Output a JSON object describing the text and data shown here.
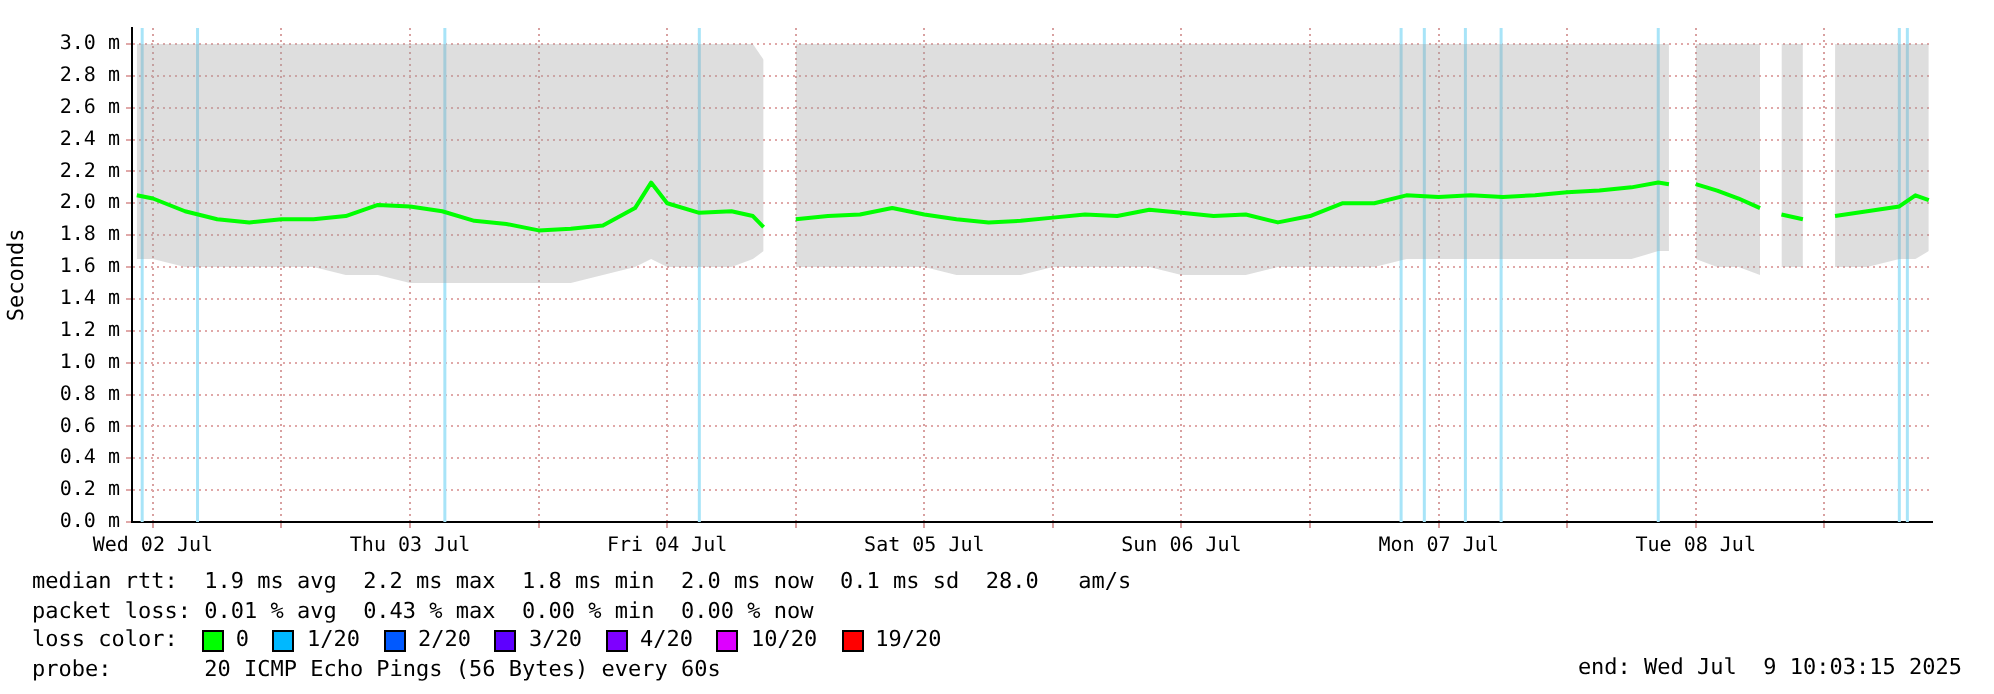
{
  "chart_data": {
    "type": "line",
    "ylabel": "Seconds",
    "legend_title": "loss color:",
    "legend": "bottom",
    "grid": true,
    "marker": "none",
    "line_style": "solid",
    "x": [
      "2025-07-02T10:30",
      "2025-07-02T12:00",
      "2025-07-02T15:00",
      "2025-07-02T18:00",
      "2025-07-02T21:00",
      "2025-07-03T00:00",
      "2025-07-03T03:00",
      "2025-07-03T06:00",
      "2025-07-03T09:00",
      "2025-07-03T12:00",
      "2025-07-03T15:00",
      "2025-07-03T18:00",
      "2025-07-03T21:00",
      "2025-07-04T00:00",
      "2025-07-04T03:00",
      "2025-07-04T06:00",
      "2025-07-04T09:00",
      "2025-07-04T10:30",
      "2025-07-04T12:00",
      "2025-07-04T15:00",
      "2025-07-04T18:00",
      "2025-07-04T20:00",
      "2025-07-04T21:00",
      "2025-07-04T22:00",
      "2025-07-05T00:00",
      "2025-07-05T03:00",
      "2025-07-05T06:00",
      "2025-07-05T09:00",
      "2025-07-05T12:00",
      "2025-07-05T15:00",
      "2025-07-05T18:00",
      "2025-07-05T21:00",
      "2025-07-06T00:00",
      "2025-07-06T03:00",
      "2025-07-06T06:00",
      "2025-07-06T09:00",
      "2025-07-06T12:00",
      "2025-07-06T15:00",
      "2025-07-06T18:00",
      "2025-07-06T21:00",
      "2025-07-07T00:00",
      "2025-07-07T03:00",
      "2025-07-07T06:00",
      "2025-07-07T09:00",
      "2025-07-07T12:00",
      "2025-07-07T15:00",
      "2025-07-07T18:00",
      "2025-07-07T21:00",
      "2025-07-08T00:00",
      "2025-07-08T03:00",
      "2025-07-08T06:00",
      "2025-07-08T08:30",
      "2025-07-08T09:30",
      "2025-07-08T10:30",
      "2025-07-08T12:00",
      "2025-07-08T14:00",
      "2025-07-08T16:00",
      "2025-07-08T18:00",
      "2025-07-08T19:00",
      "2025-07-08T20:00",
      "2025-07-08T22:00",
      "2025-07-08T23:00",
      "2025-07-09T01:00",
      "2025-07-09T04:00",
      "2025-07-09T07:00",
      "2025-07-09T08:30",
      "2025-07-09T09:45"
    ],
    "series": [
      {
        "name": "0",
        "color": "#00ff00",
        "values": [
          2.05,
          2.03,
          1.95,
          1.9,
          1.88,
          1.9,
          1.9,
          1.92,
          1.99,
          1.98,
          1.95,
          1.89,
          1.87,
          1.83,
          1.84,
          1.86,
          1.97,
          2.13,
          2.0,
          1.94,
          1.95,
          1.92,
          1.85,
          null,
          1.9,
          1.92,
          1.93,
          1.97,
          1.93,
          1.9,
          1.88,
          1.89,
          1.91,
          1.93,
          1.92,
          1.96,
          1.94,
          1.92,
          1.93,
          1.88,
          1.92,
          2.0,
          2.0,
          2.05,
          2.04,
          2.05,
          2.04,
          2.05,
          2.07,
          2.08,
          2.1,
          2.13,
          2.12,
          null,
          2.12,
          2.08,
          2.03,
          1.97,
          null,
          1.93,
          1.9,
          null,
          1.92,
          1.95,
          1.98,
          2.05,
          2.02
        ],
        "lower": [
          1.65,
          1.65,
          1.6,
          1.6,
          1.6,
          1.6,
          1.6,
          1.55,
          1.55,
          1.5,
          1.5,
          1.5,
          1.5,
          1.5,
          1.5,
          1.55,
          1.6,
          1.65,
          1.6,
          1.6,
          1.6,
          1.65,
          1.7,
          null,
          1.6,
          1.6,
          1.6,
          1.6,
          1.6,
          1.55,
          1.55,
          1.55,
          1.6,
          1.6,
          1.6,
          1.6,
          1.55,
          1.55,
          1.55,
          1.6,
          1.6,
          1.6,
          1.6,
          1.65,
          1.65,
          1.65,
          1.65,
          1.65,
          1.65,
          1.65,
          1.65,
          1.7,
          1.7,
          null,
          1.65,
          1.6,
          1.6,
          1.55,
          null,
          1.6,
          1.6,
          null,
          1.6,
          1.6,
          1.65,
          1.65,
          1.7
        ],
        "upper": [
          3.0,
          3.0,
          3.0,
          3.0,
          3.0,
          3.0,
          3.0,
          3.0,
          3.0,
          3.0,
          3.0,
          3.0,
          3.0,
          3.0,
          3.0,
          3.0,
          3.0,
          3.0,
          3.0,
          3.0,
          3.0,
          3.0,
          2.9,
          null,
          3.0,
          3.0,
          3.0,
          3.0,
          3.0,
          3.0,
          3.0,
          3.0,
          3.0,
          3.0,
          3.0,
          3.0,
          3.0,
          3.0,
          3.0,
          3.0,
          3.0,
          3.0,
          3.0,
          3.0,
          3.0,
          3.0,
          3.0,
          3.0,
          3.0,
          3.0,
          3.0,
          3.0,
          3.0,
          null,
          3.0,
          3.0,
          3.0,
          3.0,
          null,
          3.0,
          3.0,
          null,
          3.0,
          3.0,
          3.0,
          3.0,
          3.0
        ]
      },
      {
        "name": "1/20",
        "color": "#00b8ff",
        "values": [
          null,
          null,
          null,
          null,
          null,
          null,
          null,
          null,
          null,
          null,
          null,
          null,
          null,
          null,
          null,
          null,
          null,
          null,
          null,
          null,
          null,
          null,
          null,
          null,
          null,
          null,
          null,
          null,
          null,
          null,
          null,
          null,
          null,
          null,
          null,
          null,
          null,
          null,
          null,
          null,
          null,
          null,
          null,
          null,
          null,
          null,
          null,
          null,
          null,
          null,
          null,
          null,
          null,
          null,
          null,
          null,
          null,
          null,
          null,
          null,
          null,
          null,
          null,
          null,
          null,
          null,
          null
        ]
      },
      {
        "name": "2/20",
        "color": "#0059ff",
        "values": [
          null,
          null,
          null,
          null,
          null,
          null,
          null,
          null,
          null,
          null,
          null,
          null,
          null,
          null,
          null,
          null,
          null,
          null,
          null,
          null,
          null,
          null,
          null,
          null,
          null,
          null,
          null,
          null,
          null,
          null,
          null,
          null,
          null,
          null,
          null,
          null,
          null,
          null,
          null,
          null,
          null,
          null,
          null,
          null,
          null,
          null,
          null,
          null,
          null,
          null,
          null,
          null,
          null,
          null,
          null,
          null,
          null,
          null,
          null,
          null,
          null,
          null,
          null,
          null,
          null,
          null,
          null
        ]
      },
      {
        "name": "3/20",
        "color": "#5e00ff",
        "values": [
          null,
          null,
          null,
          null,
          null,
          null,
          null,
          null,
          null,
          null,
          null,
          null,
          null,
          null,
          null,
          null,
          null,
          null,
          null,
          null,
          null,
          null,
          null,
          null,
          null,
          null,
          null,
          null,
          null,
          null,
          null,
          null,
          null,
          null,
          null,
          null,
          null,
          null,
          null,
          null,
          null,
          null,
          null,
          null,
          null,
          null,
          null,
          null,
          null,
          null,
          null,
          null,
          null,
          null,
          null,
          null,
          null,
          null,
          null,
          null,
          null,
          null,
          null,
          null,
          null,
          null,
          null
        ]
      },
      {
        "name": "4/20",
        "color": "#7e00ff",
        "values": [
          null,
          null,
          null,
          null,
          null,
          null,
          null,
          null,
          null,
          null,
          null,
          null,
          null,
          null,
          null,
          null,
          null,
          null,
          null,
          null,
          null,
          null,
          null,
          null,
          null,
          null,
          null,
          null,
          null,
          null,
          null,
          null,
          null,
          null,
          null,
          null,
          null,
          null,
          null,
          null,
          null,
          null,
          null,
          null,
          null,
          null,
          null,
          null,
          null,
          null,
          null,
          null,
          null,
          null,
          null,
          null,
          null,
          null,
          null,
          null,
          null,
          null,
          null,
          null,
          null,
          null,
          null
        ]
      },
      {
        "name": "10/20",
        "color": "#dd00ff",
        "values": [
          null,
          null,
          null,
          null,
          null,
          null,
          null,
          null,
          null,
          null,
          null,
          null,
          null,
          null,
          null,
          null,
          null,
          null,
          null,
          null,
          null,
          null,
          null,
          null,
          null,
          null,
          null,
          null,
          null,
          null,
          null,
          null,
          null,
          null,
          null,
          null,
          null,
          null,
          null,
          null,
          null,
          null,
          null,
          null,
          null,
          null,
          null,
          null,
          null,
          null,
          null,
          null,
          null,
          null,
          null,
          null,
          null,
          null,
          null,
          null,
          null,
          null,
          null,
          null,
          null,
          null,
          null
        ]
      },
      {
        "name": "19/20",
        "color": "#ff0000",
        "values": [
          null,
          null,
          null,
          null,
          null,
          null,
          null,
          null,
          null,
          null,
          null,
          null,
          null,
          null,
          null,
          null,
          null,
          null,
          null,
          null,
          null,
          null,
          null,
          null,
          null,
          null,
          null,
          null,
          null,
          null,
          null,
          null,
          null,
          null,
          null,
          null,
          null,
          null,
          null,
          null,
          null,
          null,
          null,
          null,
          null,
          null,
          null,
          null,
          null,
          null,
          null,
          null,
          null,
          null,
          null,
          null,
          null,
          null,
          null,
          null,
          null,
          null,
          null,
          null,
          null,
          null,
          null
        ]
      }
    ],
    "ref_lines": [
      {
        "axis": "x",
        "value": "2025-07-02T11:00",
        "color": "#a8e4f8"
      },
      {
        "axis": "x",
        "value": "2025-07-02T16:10",
        "color": "#a8e4f8"
      },
      {
        "axis": "x",
        "value": "2025-07-03T15:15",
        "color": "#a8e4f8"
      },
      {
        "axis": "x",
        "value": "2025-07-04T15:00",
        "color": "#a8e4f8"
      },
      {
        "axis": "x",
        "value": "2025-07-07T08:30",
        "color": "#a8e4f8"
      },
      {
        "axis": "x",
        "value": "2025-07-07T10:40",
        "color": "#a8e4f8"
      },
      {
        "axis": "x",
        "value": "2025-07-07T14:30",
        "color": "#a8e4f8"
      },
      {
        "axis": "x",
        "value": "2025-07-07T17:50",
        "color": "#a8e4f8"
      },
      {
        "axis": "x",
        "value": "2025-07-08T08:30",
        "color": "#a8e4f8"
      },
      {
        "axis": "x",
        "value": "2025-07-09T07:00",
        "color": "#a8e4f8"
      },
      {
        "axis": "x",
        "value": "2025-07-09T07:45",
        "color": "#a8e4f8"
      }
    ],
    "xlim": [
      "2025-07-02T10:03",
      "2025-07-09T10:03"
    ],
    "xticks": [
      {
        "value": "2025-07-02T12:00",
        "label": "Wed 02 Jul"
      },
      {
        "value": "2025-07-03T00:00",
        "label": null
      },
      {
        "value": "2025-07-03T12:00",
        "label": "Thu 03 Jul"
      },
      {
        "value": "2025-07-04T00:00",
        "label": null
      },
      {
        "value": "2025-07-04T12:00",
        "label": "Fri 04 Jul"
      },
      {
        "value": "2025-07-05T00:00",
        "label": null
      },
      {
        "value": "2025-07-05T12:00",
        "label": "Sat 05 Jul"
      },
      {
        "value": "2025-07-06T00:00",
        "label": null
      },
      {
        "value": "2025-07-06T12:00",
        "label": "Sun 06 Jul"
      },
      {
        "value": "2025-07-07T00:00",
        "label": null
      },
      {
        "value": "2025-07-07T12:00",
        "label": "Mon 07 Jul"
      },
      {
        "value": "2025-07-08T00:00",
        "label": null
      },
      {
        "value": "2025-07-08T12:00",
        "label": "Tue 08 Jul"
      },
      {
        "value": "2025-07-09T00:00",
        "label": null
      }
    ],
    "ylim": [
      0,
      3.1
    ],
    "yticks": [
      {
        "value": 0,
        "label": "0.0 m"
      },
      {
        "value": 0.2,
        "label": "0.2 m"
      },
      {
        "value": 0.4,
        "label": "0.4 m"
      },
      {
        "value": 0.6,
        "label": "0.6 m"
      },
      {
        "value": 0.8,
        "label": "0.8 m"
      },
      {
        "value": 1.0,
        "label": "1.0 m"
      },
      {
        "value": 1.2,
        "label": "1.2 m"
      },
      {
        "value": 1.4,
        "label": "1.4 m"
      },
      {
        "value": 1.6,
        "label": "1.6 m"
      },
      {
        "value": 1.8,
        "label": "1.8 m"
      },
      {
        "value": 2.0,
        "label": "2.0 m"
      },
      {
        "value": 2.2,
        "label": "2.2 m"
      },
      {
        "value": 2.4,
        "label": "2.4 m"
      },
      {
        "value": 2.6,
        "label": "2.6 m"
      },
      {
        "value": 2.8,
        "label": "2.8 m"
      },
      {
        "value": 3.0,
        "label": "3.0 m"
      }
    ],
    "annotations": [
      "median rtt:  1.9 ms avg  2.2 ms max  1.8 ms min  2.0 ms now  0.1 ms sd  28.0   am/s",
      "packet loss: 0.01 % avg  0.43 % max  0.00 % min  0.00 % now",
      "probe:       20 ICMP Echo Pings (56 Bytes) every 60s",
      "end: Wed Jul  9 10:03:15 2025"
    ]
  }
}
